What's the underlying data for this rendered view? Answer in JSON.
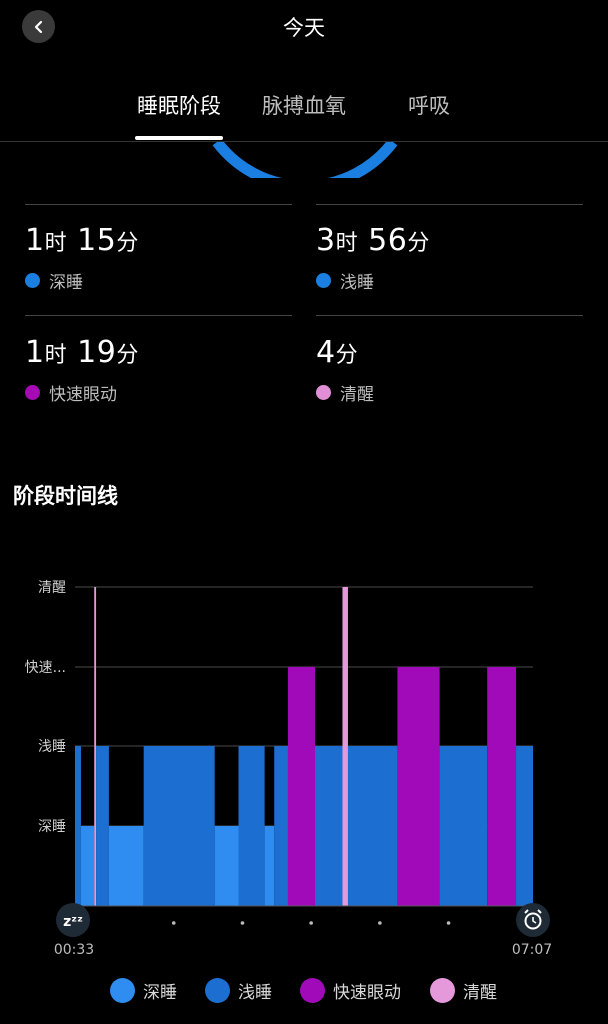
{
  "header": {
    "title": "今天",
    "back_icon": "chevron-left-icon"
  },
  "tabs": [
    {
      "label": "睡眠阶段",
      "active": true
    },
    {
      "label": "脉搏血氧",
      "active": false
    },
    {
      "label": "呼吸",
      "active": false
    }
  ],
  "stats": [
    {
      "h": "1",
      "h_unit": "时",
      "m": "15",
      "m_unit": "分",
      "label": "深睡",
      "color": "#1a7fe0"
    },
    {
      "h": "3",
      "h_unit": "时",
      "m": "56",
      "m_unit": "分",
      "label": "浅睡",
      "color": "#1a7fe0"
    },
    {
      "h": "1",
      "h_unit": "时",
      "m": "19",
      "m_unit": "分",
      "label": "快速眼动",
      "color": "#a50ab5"
    },
    {
      "h": "",
      "h_unit": "",
      "m": "4",
      "m_unit": "分",
      "label": "清醒",
      "color": "#e08fd6"
    }
  ],
  "timeline": {
    "section_title": "阶段时间线"
  },
  "chart_data": {
    "type": "area",
    "y_levels": [
      "清醒",
      "快速...",
      "浅睡",
      "深睡"
    ],
    "start_time": "00:33",
    "end_time": "07:07",
    "start_icon": "zzz-icon",
    "end_icon": "alarm-clock-icon",
    "colors": {
      "deep": "#2f8cf0",
      "light": "#1c6fd0",
      "rem": "#a10ab8",
      "awake": "#e599db"
    },
    "segments": [
      {
        "stage": "light",
        "start": 0.0,
        "end": 0.013
      },
      {
        "stage": "deep",
        "start": 0.013,
        "end": 0.042
      },
      {
        "stage": "awake",
        "start": 0.042,
        "end": 0.046
      },
      {
        "stage": "light",
        "start": 0.046,
        "end": 0.074
      },
      {
        "stage": "deep",
        "start": 0.074,
        "end": 0.15
      },
      {
        "stage": "light",
        "start": 0.15,
        "end": 0.305
      },
      {
        "stage": "deep",
        "start": 0.305,
        "end": 0.357
      },
      {
        "stage": "light",
        "start": 0.357,
        "end": 0.414
      },
      {
        "stage": "deep",
        "start": 0.414,
        "end": 0.435
      },
      {
        "stage": "light",
        "start": 0.435,
        "end": 0.465
      },
      {
        "stage": "rem",
        "start": 0.465,
        "end": 0.524
      },
      {
        "stage": "light",
        "start": 0.524,
        "end": 0.584
      },
      {
        "stage": "awake",
        "start": 0.584,
        "end": 0.596
      },
      {
        "stage": "light",
        "start": 0.596,
        "end": 0.704
      },
      {
        "stage": "rem",
        "start": 0.704,
        "end": 0.796
      },
      {
        "stage": "light",
        "start": 0.796,
        "end": 0.9
      },
      {
        "stage": "rem",
        "start": 0.9,
        "end": 0.963
      },
      {
        "stage": "light",
        "start": 0.963,
        "end": 1.0
      }
    ]
  },
  "legend": [
    {
      "label": "深睡",
      "color": "#2f8cf0"
    },
    {
      "label": "浅睡",
      "color": "#1c6fd0"
    },
    {
      "label": "快速眼动",
      "color": "#a10ab8"
    },
    {
      "label": "清醒",
      "color": "#e599db"
    }
  ]
}
